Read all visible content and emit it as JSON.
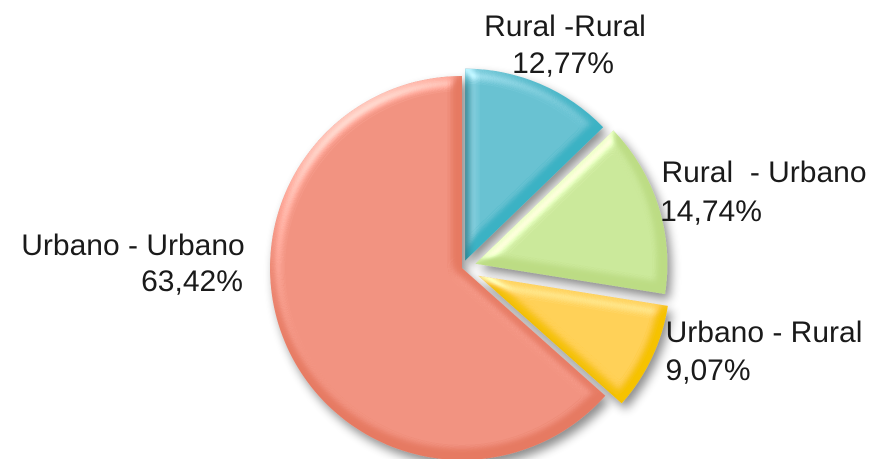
{
  "chart_data": {
    "type": "pie",
    "exploded": true,
    "style": "3d-bevel",
    "slices": [
      {
        "name": "Rural -Rural",
        "value_label": "12,77%",
        "value": 12.77,
        "color": "#3bb2c4"
      },
      {
        "name": "Rural  - Urbano",
        "value_label": "14,74%",
        "value": 14.74,
        "color": "#bcdc84"
      },
      {
        "name": "Urbano - Rural",
        "value_label": "9,07%",
        "value": 9.07,
        "color": "#f6c200"
      },
      {
        "name": "Urbano - Urbano",
        "value_label": "63,42%",
        "value": 63.42,
        "color": "#e67a62"
      }
    ]
  }
}
